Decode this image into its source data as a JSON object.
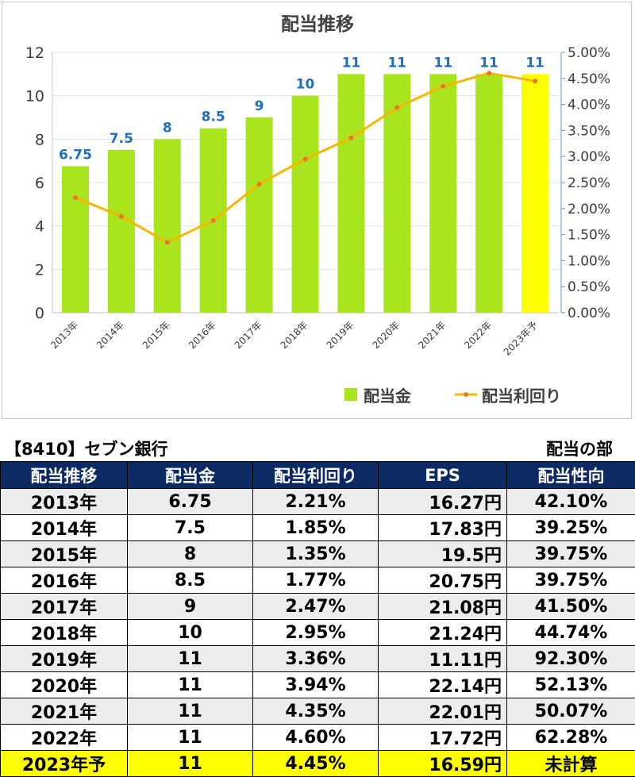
{
  "chart_data": {
    "type": "bar+line",
    "title": "配当推移",
    "categories": [
      "2013年",
      "2014年",
      "2015年",
      "2016年",
      "2017年",
      "2018年",
      "2019年",
      "2020年",
      "2021年",
      "2022年",
      "2023年予"
    ],
    "series": [
      {
        "name": "配当金",
        "type": "bar",
        "axis": "left",
        "values": [
          6.75,
          7.5,
          8,
          8.5,
          9,
          10,
          11,
          11,
          11,
          11,
          11
        ],
        "data_labels": [
          "6.75",
          "7.5",
          "8",
          "8.5",
          "9",
          "10",
          "11",
          "11",
          "11",
          "11",
          "11"
        ]
      },
      {
        "name": "配当利回り",
        "type": "line",
        "axis": "right",
        "values": [
          2.21,
          1.85,
          1.35,
          1.77,
          2.47,
          2.95,
          3.36,
          3.94,
          4.35,
          4.6,
          4.45
        ]
      }
    ],
    "y_left": {
      "min": 0,
      "max": 12,
      "ticks": [
        "0",
        "2",
        "4",
        "6",
        "8",
        "10",
        "12"
      ]
    },
    "y_right": {
      "min": 0,
      "max": 5,
      "ticks": [
        "0.00%",
        "0.50%",
        "1.00%",
        "1.50%",
        "2.00%",
        "2.50%",
        "3.00%",
        "3.50%",
        "4.00%",
        "4.50%",
        "5.00%"
      ]
    },
    "grid": true,
    "legend_position": "bottom-right",
    "colors": {
      "bar": "#a8e51e",
      "bar_forecast": "#ffff00",
      "line": "#f5b800",
      "line_marker": "#e8762b",
      "label_blue": "#1f6fbf",
      "axis_text": "#3c3c3c"
    }
  },
  "header": {
    "company": "【8410】セブン銀行",
    "section": "配当の部"
  },
  "table": {
    "columns": [
      "配当推移",
      "配当金",
      "配当利回り",
      "EPS",
      "配当性向"
    ],
    "rows": [
      [
        "2013年",
        "6.75",
        "2.21%",
        "16.27円",
        "42.10%"
      ],
      [
        "2014年",
        "7.5",
        "1.85%",
        "17.83円",
        "39.25%"
      ],
      [
        "2015年",
        "8",
        "1.35%",
        "19.5円",
        "39.75%"
      ],
      [
        "2016年",
        "8.5",
        "1.77%",
        "20.75円",
        "39.75%"
      ],
      [
        "2017年",
        "9",
        "2.47%",
        "21.08円",
        "41.50%"
      ],
      [
        "2018年",
        "10",
        "2.95%",
        "21.24円",
        "44.74%"
      ],
      [
        "2019年",
        "11",
        "3.36%",
        "11.11円",
        "92.30%"
      ],
      [
        "2020年",
        "11",
        "3.94%",
        "22.14円",
        "52.13%"
      ],
      [
        "2021年",
        "11",
        "4.35%",
        "22.01円",
        "50.07%"
      ],
      [
        "2022年",
        "11",
        "4.60%",
        "17.72円",
        "62.28%"
      ],
      [
        "2023年予",
        "11",
        "4.45%",
        "16.59円",
        "未計算"
      ]
    ]
  }
}
